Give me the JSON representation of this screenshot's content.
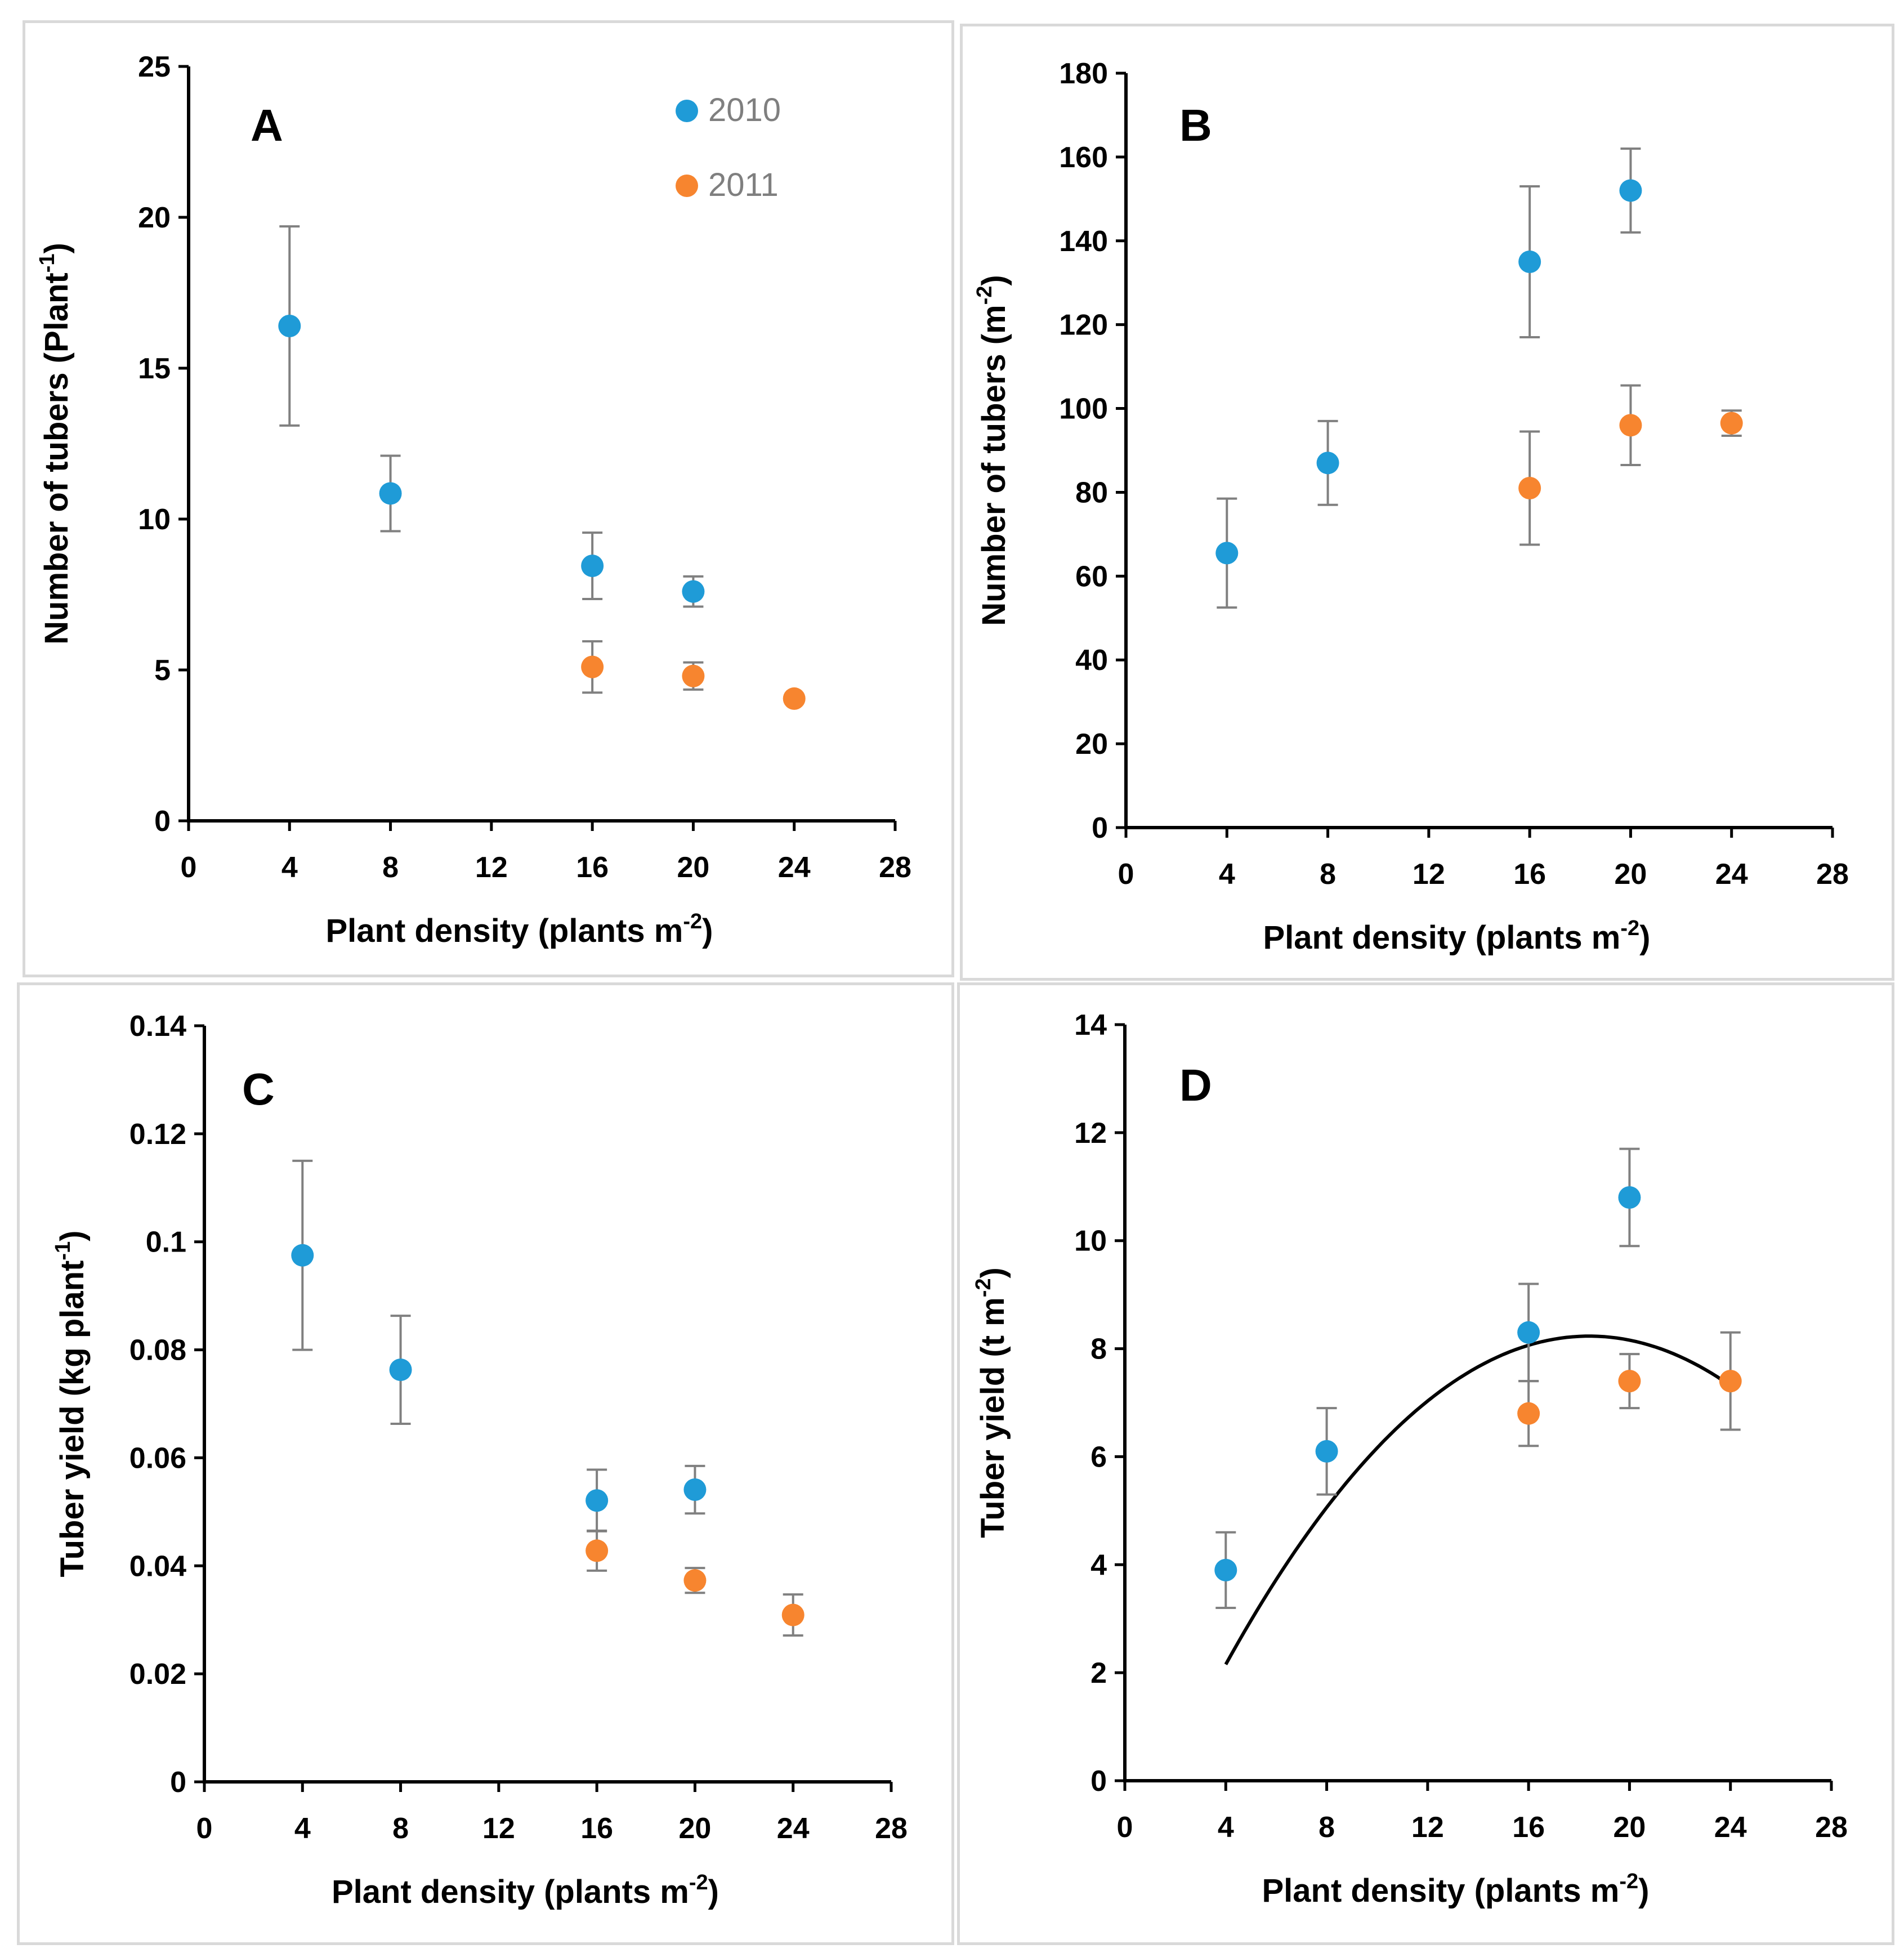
{
  "colors": {
    "y2010": "#1f9bd7",
    "y2011": "#f7852f",
    "axis": "#000000",
    "errorbar": "#808080",
    "fit": "#000000"
  },
  "legend": [
    {
      "label": "2010",
      "series": "y2010"
    },
    {
      "label": "2011",
      "series": "y2011"
    }
  ],
  "chart_data": [
    {
      "id": "A",
      "type": "scatter",
      "letter": "A",
      "xlabel": "Plant density (plants m",
      "xlabel_sup": "-2",
      "xlabel_end": ")",
      "ylabel": "Number of tubers (Plant",
      "ylabel_sup": "-1",
      "ylabel_end": ")",
      "xlim": [
        0,
        28
      ],
      "xticks": [
        0,
        4,
        8,
        12,
        16,
        20,
        24,
        28
      ],
      "xtick_labels": [
        "0",
        "4",
        "8",
        "12",
        "16",
        "20",
        "24",
        "28"
      ],
      "ylim": [
        0,
        25
      ],
      "yticks": [
        0,
        5,
        10,
        15,
        20,
        25
      ],
      "ytick_labels": [
        "0",
        "5",
        "10",
        "15",
        "20",
        "25"
      ],
      "series": [
        {
          "name": "2010",
          "color": "y2010",
          "points": [
            {
              "x": 4,
              "y": 16.4,
              "err": 3.3
            },
            {
              "x": 8,
              "y": 10.85,
              "err": 1.25
            },
            {
              "x": 16,
              "y": 8.45,
              "err": 1.1
            },
            {
              "x": 20,
              "y": 7.6,
              "err": 0.5
            }
          ]
        },
        {
          "name": "2011",
          "color": "y2011",
          "points": [
            {
              "x": 16,
              "y": 5.1,
              "err": 0.85
            },
            {
              "x": 20,
              "y": 4.8,
              "err": 0.45
            },
            {
              "x": 24,
              "y": 4.05,
              "err": 0
            }
          ]
        }
      ],
      "show_legend": true
    },
    {
      "id": "B",
      "type": "scatter",
      "letter": "B",
      "xlabel": "Plant density (plants m",
      "xlabel_sup": "-2",
      "xlabel_end": ")",
      "ylabel": "Number of tubers (m",
      "ylabel_sup": "-2",
      "ylabel_end": ")",
      "xlim": [
        0,
        28
      ],
      "xticks": [
        0,
        4,
        8,
        12,
        16,
        20,
        24,
        28
      ],
      "xtick_labels": [
        "0",
        "4",
        "8",
        "12",
        "16",
        "20",
        "24",
        "28"
      ],
      "ylim": [
        0,
        180
      ],
      "yticks": [
        0,
        20,
        40,
        60,
        80,
        100,
        120,
        140,
        160,
        180
      ],
      "ytick_labels": [
        "0",
        "20",
        "40",
        "60",
        "80",
        "100",
        "120",
        "140",
        "160",
        "180"
      ],
      "series": [
        {
          "name": "2010",
          "color": "y2010",
          "points": [
            {
              "x": 4,
              "y": 65.5,
              "err": 13
            },
            {
              "x": 8,
              "y": 87,
              "err": 10
            },
            {
              "x": 16,
              "y": 135,
              "err": 18
            },
            {
              "x": 20,
              "y": 152,
              "err": 10
            }
          ]
        },
        {
          "name": "2011",
          "color": "y2011",
          "points": [
            {
              "x": 16,
              "y": 81,
              "err": 13.5
            },
            {
              "x": 20,
              "y": 96,
              "err": 9.5
            },
            {
              "x": 24,
              "y": 96.5,
              "err": 3
            }
          ]
        }
      ],
      "show_legend": false
    },
    {
      "id": "C",
      "type": "scatter",
      "letter": "C",
      "xlabel": "Plant density (plants m",
      "xlabel_sup": "-2",
      "xlabel_end": ")",
      "ylabel": "Tuber yield (kg plant",
      "ylabel_sup": "-1",
      "ylabel_end": ")",
      "xlim": [
        0,
        28
      ],
      "xticks": [
        0,
        4,
        8,
        12,
        16,
        20,
        24,
        28
      ],
      "xtick_labels": [
        "0",
        "4",
        "8",
        "12",
        "16",
        "20",
        "24",
        "28"
      ],
      "ylim": [
        0,
        0.14
      ],
      "yticks": [
        0,
        0.02,
        0.04,
        0.06,
        0.08,
        0.1,
        0.12,
        0.14
      ],
      "ytick_labels": [
        "0",
        "0.02",
        "0.04",
        "0.06",
        "0.08",
        "0.1",
        "0.12",
        "0.14"
      ],
      "series": [
        {
          "name": "2010",
          "color": "y2010",
          "points": [
            {
              "x": 4,
              "y": 0.0975,
              "err": 0.0175
            },
            {
              "x": 8,
              "y": 0.0763,
              "err": 0.01
            },
            {
              "x": 16,
              "y": 0.0521,
              "err": 0.0057
            },
            {
              "x": 20,
              "y": 0.0541,
              "err": 0.0044
            }
          ]
        },
        {
          "name": "2011",
          "color": "y2011",
          "points": [
            {
              "x": 16,
              "y": 0.0428,
              "err": 0.0037
            },
            {
              "x": 20,
              "y": 0.0373,
              "err": 0.0023
            },
            {
              "x": 24,
              "y": 0.0309,
              "err": 0.0038
            }
          ]
        }
      ],
      "show_legend": false
    },
    {
      "id": "D",
      "type": "scatter",
      "letter": "D",
      "xlabel": "Plant density (plants m",
      "xlabel_sup": "-2",
      "xlabel_end": ")",
      "ylabel": "Tuber yield (t m",
      "ylabel_sup": "-2",
      "ylabel_end": ")",
      "xlim": [
        0,
        28
      ],
      "xticks": [
        0,
        4,
        8,
        12,
        16,
        20,
        24,
        28
      ],
      "xtick_labels": [
        "0",
        "4",
        "8",
        "12",
        "16",
        "20",
        "24",
        "28"
      ],
      "ylim": [
        0,
        14
      ],
      "yticks": [
        0,
        2,
        4,
        6,
        8,
        10,
        12,
        14
      ],
      "ytick_labels": [
        "0",
        "2",
        "4",
        "6",
        "8",
        "10",
        "12",
        "14"
      ],
      "series": [
        {
          "name": "2010",
          "color": "y2010",
          "points": [
            {
              "x": 4,
              "y": 3.9,
              "err": 0.7
            },
            {
              "x": 8,
              "y": 6.1,
              "err": 0.8
            },
            {
              "x": 16,
              "y": 8.3,
              "err": 0.9
            },
            {
              "x": 20,
              "y": 10.8,
              "err": 0.9
            }
          ]
        },
        {
          "name": "2011",
          "color": "y2011",
          "points": [
            {
              "x": 16,
              "y": 6.8,
              "err": 0.6
            },
            {
              "x": 20,
              "y": 7.4,
              "err": 0.5
            },
            {
              "x": 24,
              "y": 7.4,
              "err": 0.9
            }
          ]
        }
      ],
      "fit": {
        "type": "quadratic",
        "x_range": [
          4,
          24
        ],
        "a": -0.0293,
        "b": 1.0785,
        "c": -1.6919
      },
      "show_legend": false
    }
  ]
}
